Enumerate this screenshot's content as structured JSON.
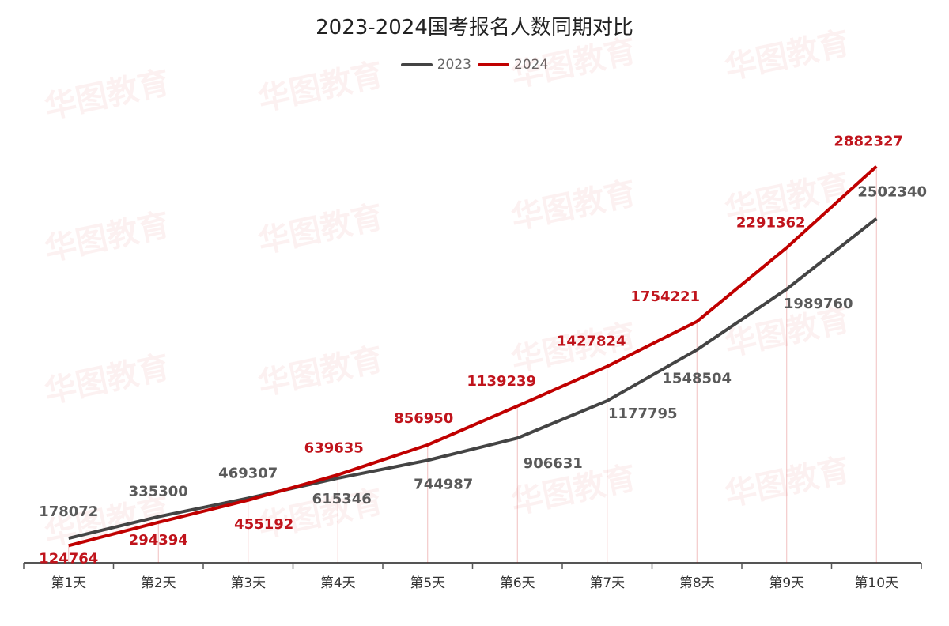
{
  "title": "2023-2024国考报名人数同期对比",
  "legend": [
    {
      "label": "2023",
      "color": "#444444"
    },
    {
      "label": "2024",
      "color": "#c00000"
    }
  ],
  "watermark": "华图教育 HUATU.COM",
  "chart_data": {
    "type": "line",
    "title": "2023-2024国考报名人数同期对比",
    "xlabel": "",
    "ylabel": "",
    "categories": [
      "第1天",
      "第2天",
      "第3天",
      "第4天",
      "第5天",
      "第6天",
      "第7天",
      "第8天",
      "第9天",
      "第10天"
    ],
    "series": [
      {
        "name": "2023",
        "color": "#444444",
        "values": [
          178072,
          335300,
          469307,
          615346,
          744987,
          906631,
          1177795,
          1548504,
          1989760,
          2502340
        ]
      },
      {
        "name": "2024",
        "color": "#c00000",
        "values": [
          124764,
          294394,
          455192,
          639635,
          856950,
          1139239,
          1427824,
          1754221,
          2291362,
          2882327
        ]
      }
    ],
    "ylim": [
      0,
      3000000
    ],
    "grid": false,
    "legend_position": "top"
  }
}
